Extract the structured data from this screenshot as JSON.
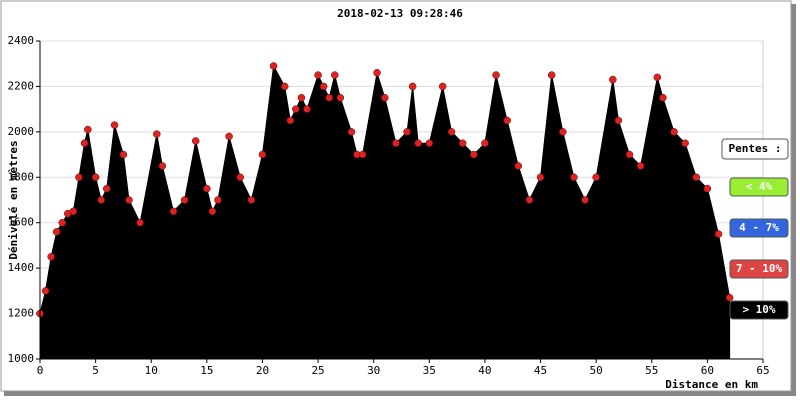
{
  "chart_data": {
    "type": "area",
    "title": "2018-02-13 09:28:46",
    "x_label": "Distance en km",
    "y_label": "Dénivelé en mètres",
    "x": [
      0,
      0.5,
      1,
      1.5,
      2,
      2.5,
      3,
      3.5,
      4,
      4.3,
      5,
      5.5,
      6,
      6.7,
      7.5,
      8,
      9,
      10.5,
      11,
      12,
      13,
      14,
      15,
      15.5,
      16,
      17,
      18,
      19,
      20,
      21,
      22,
      22.5,
      23,
      23.5,
      24,
      25,
      25.5,
      26,
      26.5,
      27,
      28,
      28.5,
      29,
      30.3,
      31,
      32,
      33,
      33.5,
      34,
      35,
      36.2,
      37,
      38,
      39,
      40,
      41,
      42,
      43,
      44,
      45,
      46,
      47,
      48,
      49,
      50,
      51.5,
      52,
      53,
      54,
      55.5,
      56,
      57,
      58,
      59,
      60,
      61,
      62
    ],
    "series": [
      {
        "color": "#000000",
        "marker_color": "#dd2222",
        "values": [
          1200,
          1300,
          1450,
          1560,
          1600,
          1640,
          1650,
          1800,
          1950,
          2010,
          1800,
          1700,
          1750,
          2030,
          1900,
          1700,
          1600,
          1990,
          1850,
          1650,
          1700,
          1960,
          1750,
          1650,
          1700,
          1980,
          1800,
          1700,
          1900,
          2290,
          2200,
          2050,
          2100,
          2150,
          2100,
          2250,
          2200,
          2150,
          2250,
          2150,
          2000,
          1900,
          1900,
          2260,
          2150,
          1950,
          2000,
          2200,
          1950,
          1950,
          2200,
          2000,
          1950,
          1900,
          1950,
          2250,
          2050,
          1850,
          1700,
          1800,
          2250,
          2000,
          1800,
          1700,
          1800,
          2230,
          2050,
          1900,
          1850,
          2240,
          2150,
          2000,
          1950,
          1800,
          1750,
          1550,
          1270
        ]
      }
    ],
    "xlim": [
      0,
      65
    ],
    "xticks": [
      0,
      5,
      10,
      15,
      20,
      25,
      30,
      35,
      40,
      45,
      50,
      55,
      60,
      65
    ],
    "ylim": [
      1000,
      2400
    ],
    "yticks": [
      1000,
      1200,
      1400,
      1600,
      1800,
      2000,
      2200,
      2400
    ],
    "grid": true,
    "legend": {
      "title": "Pentes :",
      "items": [
        {
          "label": "< 4%",
          "color": "#99ee33"
        },
        {
          "label": "4 - 7%",
          "color": "#3366dd"
        },
        {
          "label": "7 - 10%",
          "color": "#dd4444"
        },
        {
          "label": "> 10%",
          "color": "#000000"
        }
      ]
    }
  }
}
